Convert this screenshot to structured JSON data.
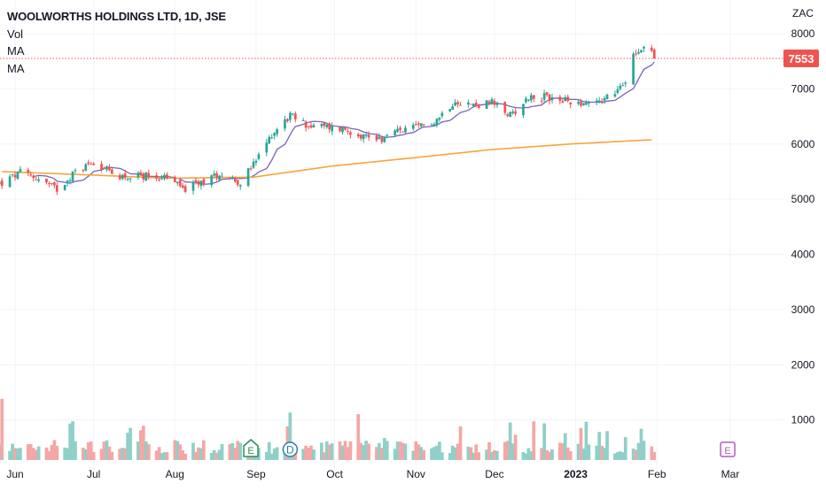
{
  "chart_data": {
    "type": "candlestick",
    "title": "WOOLWORTHS HOLDINGS LTD, 1D, JSE",
    "currency": "ZAC",
    "indicators": [
      "Vol",
      "MA",
      "MA"
    ],
    "last_price": "7553",
    "y_ticks": [
      "8000",
      "7000",
      "6000",
      "5000",
      "4000",
      "3000",
      "2000",
      "1000"
    ],
    "ylim": [
      0,
      8450
    ],
    "x_ticks": [
      "Jun",
      "Jul",
      "Aug",
      "Sep",
      "Oct",
      "Nov",
      "Dec",
      "2023",
      "Feb",
      "Mar"
    ],
    "event_markers": [
      {
        "label": "E",
        "date": "2022-08-30"
      },
      {
        "label": "D",
        "date": "2022-09-14"
      },
      {
        "label": "E",
        "date": "2023-02-28"
      }
    ],
    "colors": {
      "up": "#26a69a",
      "down": "#ef5350",
      "volume_up": "#8fd0c8",
      "volume_down": "#f4a7a5",
      "ma_short": "#7b61b8",
      "ma_long": "#f6a53c",
      "price_line": "#ef5350",
      "grid": "#f0f3fa"
    },
    "close_anchors": [
      [
        "2022-05-27",
        5290
      ],
      [
        "2022-06-03",
        5480
      ],
      [
        "2022-06-10",
        5370
      ],
      [
        "2022-06-17",
        5180
      ],
      [
        "2022-06-24",
        5500
      ],
      [
        "2022-07-01",
        5690
      ],
      [
        "2022-07-08",
        5460
      ],
      [
        "2022-07-15",
        5390
      ],
      [
        "2022-07-22",
        5440
      ],
      [
        "2022-07-29",
        5390
      ],
      [
        "2022-08-05",
        5180
      ],
      [
        "2022-08-12",
        5330
      ],
      [
        "2022-08-19",
        5480
      ],
      [
        "2022-08-26",
        5300
      ],
      [
        "2022-09-01",
        5690
      ],
      [
        "2022-09-07",
        6180
      ],
      [
        "2022-09-14",
        6520
      ],
      [
        "2022-09-21",
        6330
      ],
      [
        "2022-09-28",
        6310
      ],
      [
        "2022-10-05",
        6270
      ],
      [
        "2022-10-12",
        6150
      ],
      [
        "2022-10-19",
        6100
      ],
      [
        "2022-10-26",
        6250
      ],
      [
        "2022-11-02",
        6300
      ],
      [
        "2022-11-09",
        6450
      ],
      [
        "2022-11-16",
        6800
      ],
      [
        "2022-11-23",
        6700
      ],
      [
        "2022-11-30",
        6750
      ],
      [
        "2022-12-07",
        6520
      ],
      [
        "2022-12-14",
        6850
      ],
      [
        "2022-12-21",
        6850
      ],
      [
        "2022-12-28",
        6780
      ],
      [
        "2023-01-04",
        6750
      ],
      [
        "2023-01-11",
        6800
      ],
      [
        "2023-01-18",
        7000
      ],
      [
        "2023-01-20",
        7150
      ],
      [
        "2023-01-23",
        7650
      ],
      [
        "2023-01-26",
        7760
      ],
      [
        "2023-01-30",
        7700
      ],
      [
        "2023-01-31",
        7553
      ]
    ],
    "ma_long": [
      [
        "2022-05-27",
        5500
      ],
      [
        "2022-06-24",
        5450
      ],
      [
        "2022-07-29",
        5380
      ],
      [
        "2022-08-31",
        5400
      ],
      [
        "2022-09-30",
        5600
      ],
      [
        "2022-10-31",
        5750
      ],
      [
        "2022-11-30",
        5900
      ],
      [
        "2022-12-30",
        6000
      ],
      [
        "2023-01-31",
        6080
      ]
    ],
    "volume_ylim": [
      0,
      4600
    ]
  }
}
